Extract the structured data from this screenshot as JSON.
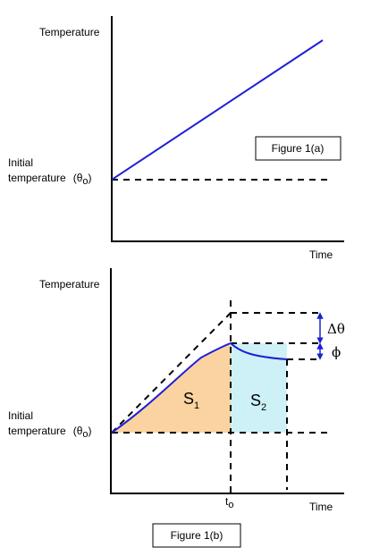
{
  "figure_a": {
    "y_axis_label": "Temperature",
    "x_axis_label": "Time",
    "initial_label_line1": "Initial",
    "initial_label_line2": "temperature",
    "theta0": "(θ",
    "theta0_sub": "o",
    "theta0_close": ")",
    "caption": "Figure 1(a)"
  },
  "figure_b": {
    "y_axis_label": "Temperature",
    "x_axis_label": "Time",
    "initial_label_line1": "Initial",
    "initial_label_line2": "temperature",
    "theta0": "(θ",
    "theta0_sub": "o",
    "theta0_close": ")",
    "area1": "S",
    "area1_sub": "1",
    "area2": "S",
    "area2_sub": "2",
    "t0": "t",
    "t0_sub": "o",
    "delta_theta": "Δθ",
    "phi": "ϕ",
    "caption": "Figure 1(b)"
  },
  "colors": {
    "curve": "#1f1fd6",
    "area1_fill": "#fbd3a0",
    "area2_fill": "#cdf1f7",
    "arrow": "#1f1fd6"
  }
}
